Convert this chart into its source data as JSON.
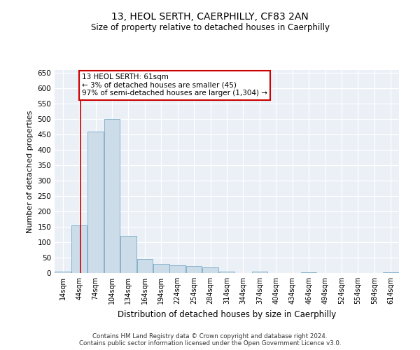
{
  "title": "13, HEOL SERTH, CAERPHILLY, CF83 2AN",
  "subtitle": "Size of property relative to detached houses in Caerphilly",
  "xlabel": "Distribution of detached houses by size in Caerphilly",
  "ylabel": "Number of detached properties",
  "bar_color": "#ccdce8",
  "bar_edge_color": "#7aaac8",
  "bin_starts": [
    14,
    44,
    74,
    104,
    134,
    164,
    194,
    224,
    254,
    284,
    314,
    344,
    374,
    404,
    434,
    464,
    494,
    524,
    554,
    584,
    614
  ],
  "bar_heights": [
    5,
    155,
    460,
    500,
    120,
    45,
    30,
    25,
    22,
    18,
    5,
    0,
    4,
    0,
    0,
    2,
    0,
    0,
    0,
    0,
    2
  ],
  "bin_width": 30,
  "property_size": 61,
  "vline_color": "#cc0000",
  "annotation_text": "13 HEOL SERTH: 61sqm\n← 3% of detached houses are smaller (45)\n97% of semi-detached houses are larger (1,304) →",
  "annotation_box_color": "white",
  "annotation_box_edge": "#cc0000",
  "ylim": [
    0,
    660
  ],
  "yticks": [
    0,
    50,
    100,
    150,
    200,
    250,
    300,
    350,
    400,
    450,
    500,
    550,
    600,
    650
  ],
  "background_color": "#eaf0f6",
  "grid_color": "#ffffff",
  "footer_line1": "Contains HM Land Registry data © Crown copyright and database right 2024.",
  "footer_line2": "Contains public sector information licensed under the Open Government Licence v3.0."
}
